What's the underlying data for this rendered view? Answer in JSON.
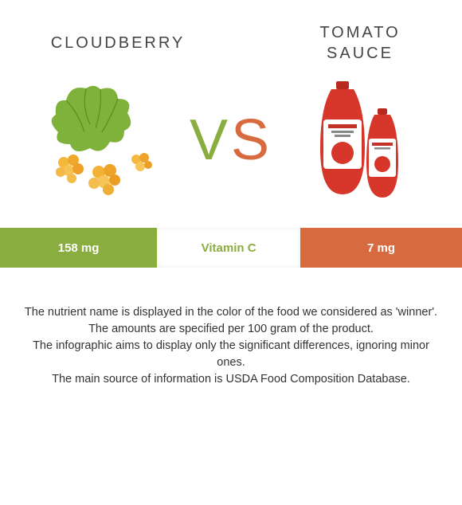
{
  "left": {
    "name": "CLOUDBERRY",
    "amount": "158 mg",
    "color": "#8aad3f"
  },
  "right": {
    "name": "TOMATO SAUCE",
    "amount": "7 mg",
    "color": "#d86a3f"
  },
  "nutrient": {
    "label": "Vitamin C",
    "label_color": "#8aad3f"
  },
  "vs": {
    "v": "V",
    "s": "S"
  },
  "bars": {
    "left_width_pct": 34,
    "mid_width_pct": 31,
    "right_width_pct": 35
  },
  "notes": [
    "The nutrient name is displayed in the color of the food we considered as 'winner'.",
    "The amounts are specified per 100 gram of the product.",
    "The infographic aims to display only the significant differences, ignoring minor ones.",
    "The main source of information is USDA Food Composition Database."
  ]
}
